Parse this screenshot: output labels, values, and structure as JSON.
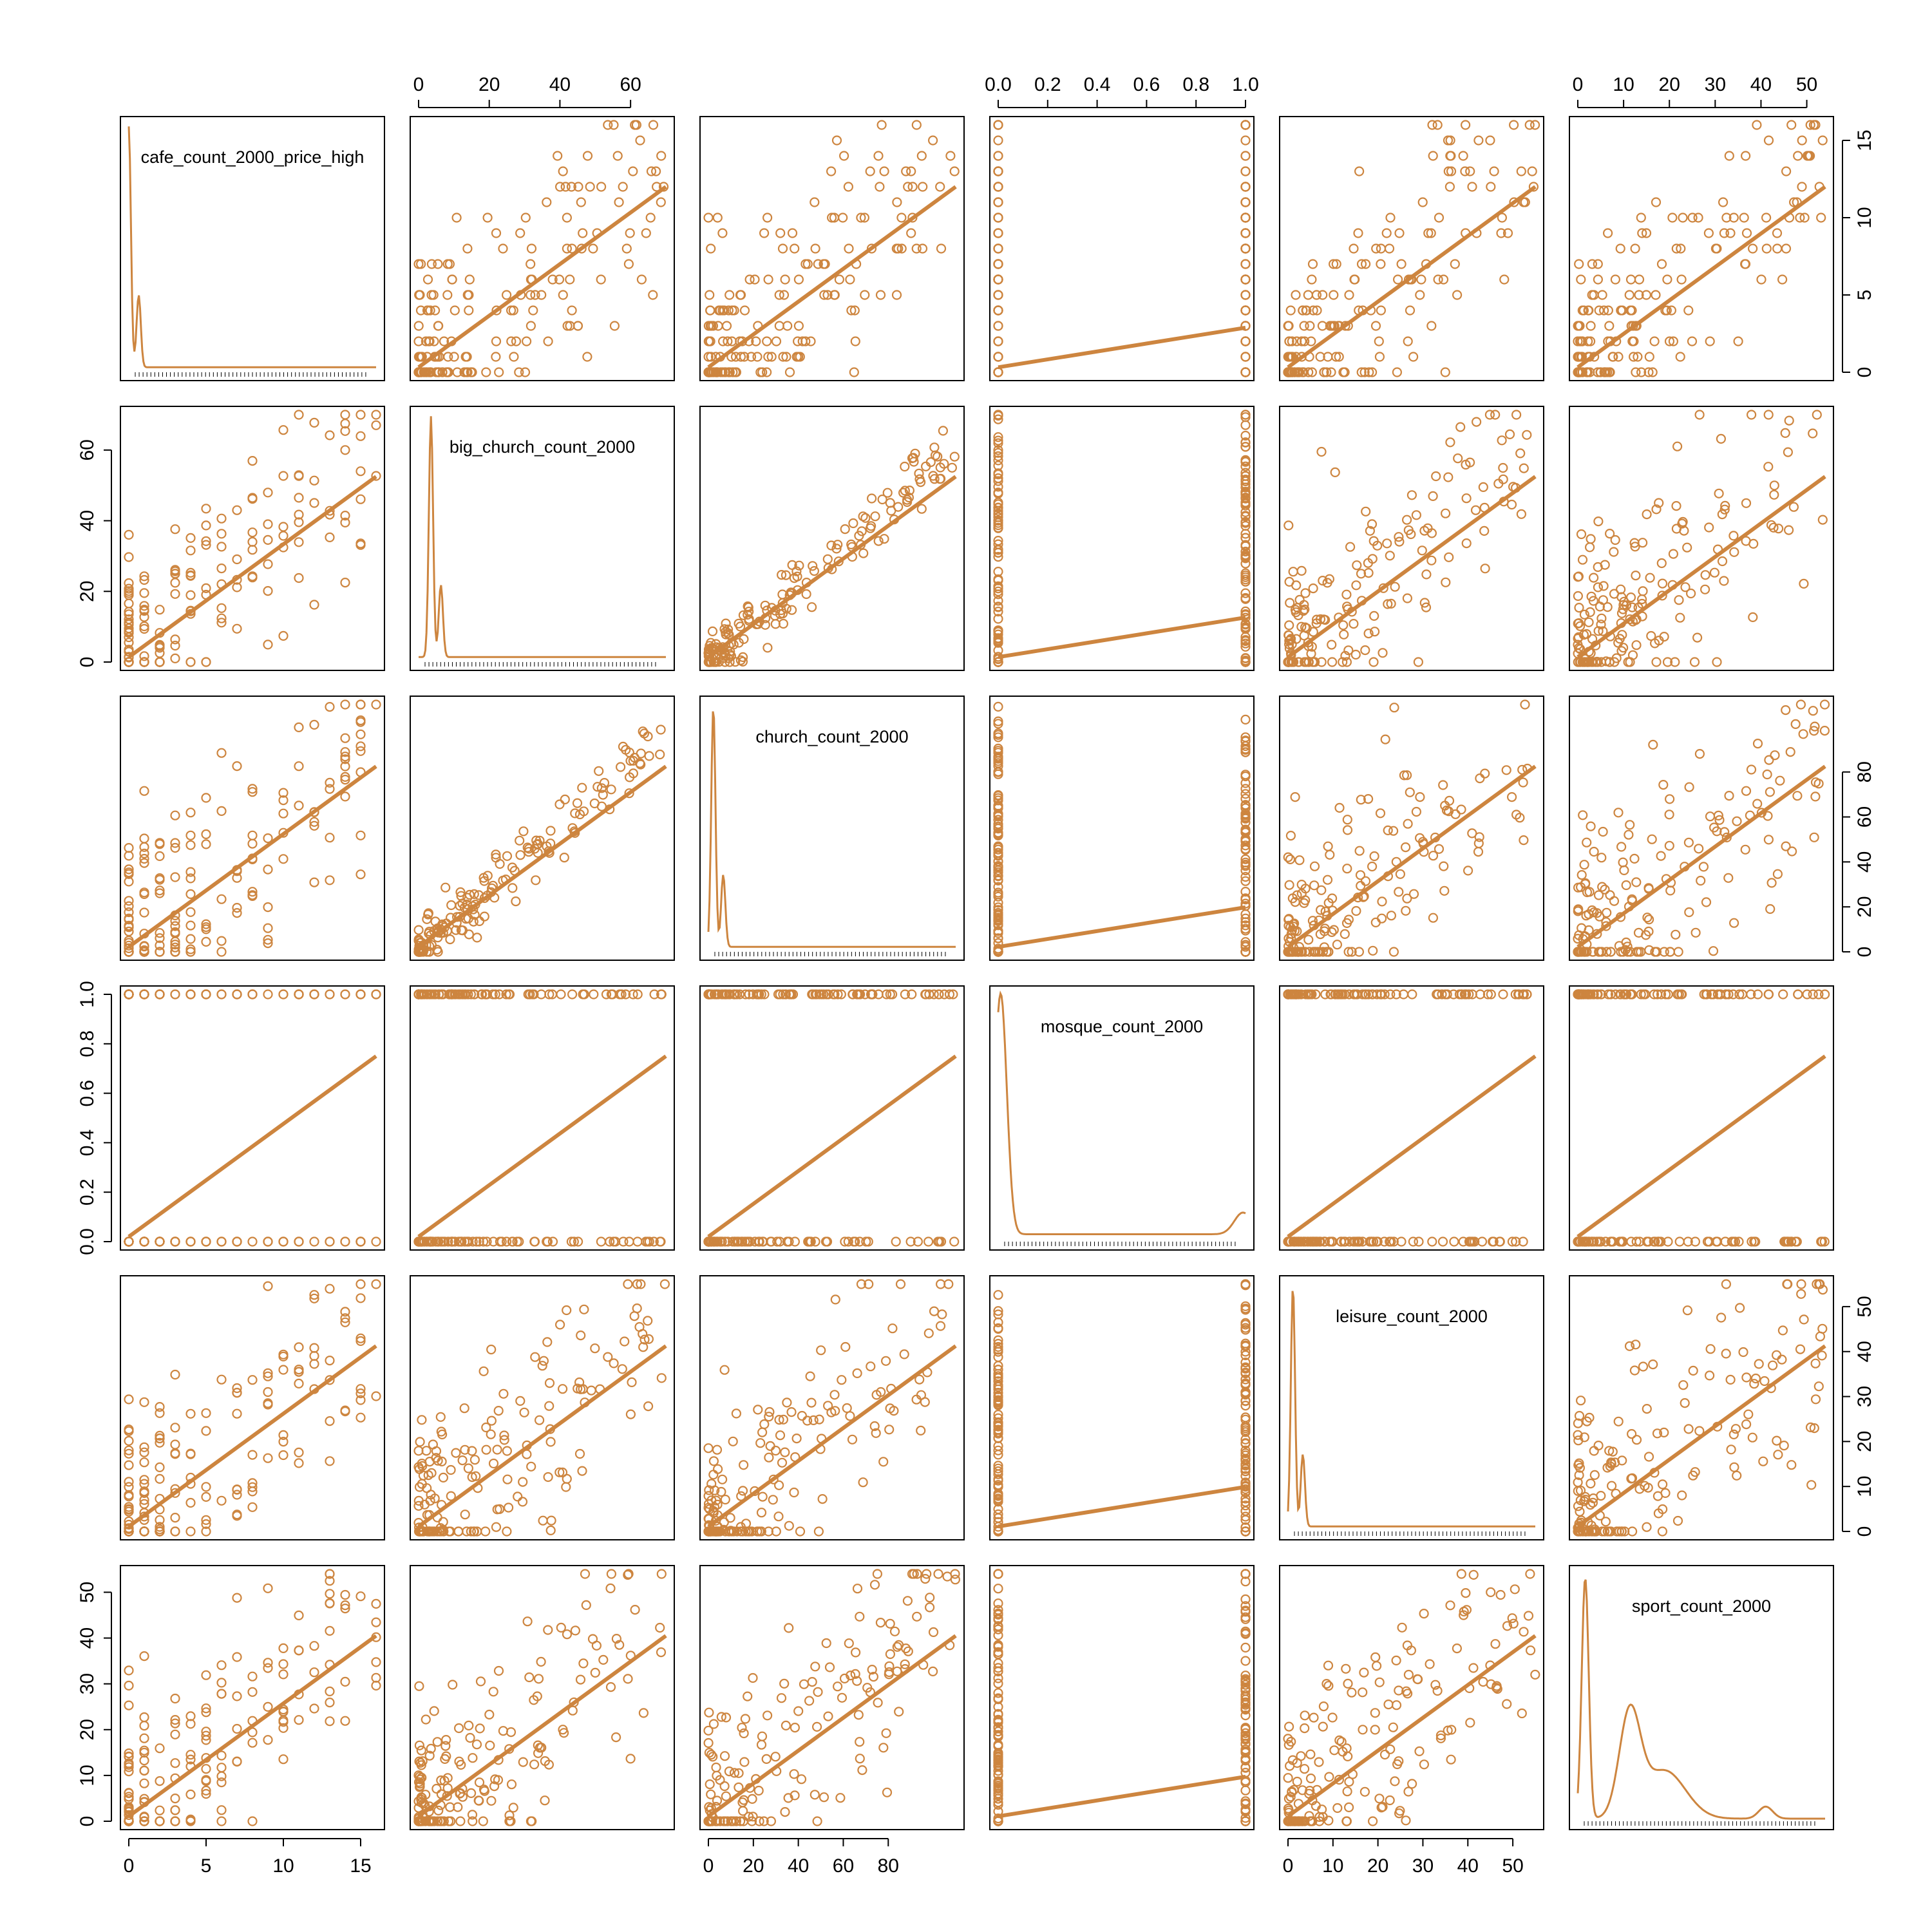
{
  "chart_data": {
    "type": "scatter",
    "kind": "scatterplot-matrix",
    "color": "#CD853F",
    "variables": [
      {
        "name": "cafe_count_2000_price_high",
        "range": [
          0,
          16
        ],
        "ticks": [
          0,
          5,
          10,
          15
        ],
        "fit_intercept": 0,
        "fit_max_value": 10
      },
      {
        "name": "big_church_count_2000",
        "range": [
          0,
          70
        ],
        "ticks": [
          0,
          20,
          40,
          60
        ],
        "fit_intercept": 0,
        "fit_max_value": 70
      },
      {
        "name": "church_count_2000",
        "range": [
          0,
          110
        ],
        "ticks": [
          0,
          20,
          40,
          60,
          80
        ],
        "fit_intercept": 4,
        "fit_max_value": 110
      },
      {
        "name": "mosque_count_2000",
        "range": [
          0,
          1
        ],
        "ticks": [
          0.0,
          0.2,
          0.4,
          0.6,
          0.8,
          1.0
        ],
        "tick_labels": [
          "0.0",
          "0.2",
          "0.4",
          "0.6",
          "0.8",
          "1.0"
        ],
        "fit_intercept": 0.03,
        "fit_max_value": 1
      },
      {
        "name": "leisure_count_2000",
        "range": [
          0,
          55
        ],
        "ticks": [
          0,
          10,
          20,
          30,
          40,
          50
        ],
        "fit_intercept": 0,
        "fit_max_value": 55
      },
      {
        "name": "sport_count_2000",
        "range": [
          0,
          54
        ],
        "ticks": [
          0,
          10,
          20,
          30,
          40,
          50
        ],
        "fit_intercept": 8,
        "fit_max_value": 54
      }
    ],
    "top_axes": [
      1,
      3,
      5
    ],
    "bottom_axes": [
      0,
      2,
      4
    ],
    "left_axes": [
      1,
      3,
      5
    ],
    "right_axes": [
      0,
      2,
      4
    ],
    "density_peaks": [
      0.0,
      0.05,
      0.02,
      0.0,
      0.02,
      0.1
    ],
    "grid": false,
    "legend": "none"
  }
}
